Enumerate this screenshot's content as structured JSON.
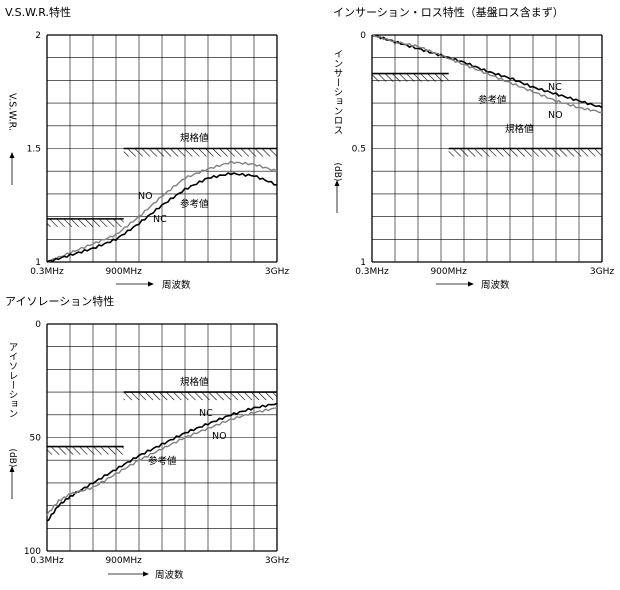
{
  "chart_data": [
    {
      "type": "line",
      "title": "V.S.W.R.特性",
      "ylabel": "V.S.W.R.",
      "xlabel": "周波数",
      "x_ticks": [
        "0.3MHz",
        "900MHz",
        "3GHz"
      ],
      "y_ticks": [
        "1",
        "1.5",
        "2"
      ],
      "ylim": [
        1,
        2
      ],
      "x_range": [
        "0.3MHz",
        "3GHz"
      ],
      "grid": true,
      "spec_label": "規格値",
      "ref_label": "参考値",
      "spec_limits": [
        {
          "x_from": "0.3MHz",
          "x_to": "900MHz",
          "y": 1.19
        },
        {
          "x_from": "900MHz",
          "x_to": "3GHz",
          "y": 1.5
        }
      ],
      "series": [
        {
          "name": "NO",
          "color": "#808080",
          "x": [
            0.0,
            0.1,
            0.2,
            0.3,
            0.4,
            0.5,
            0.6,
            0.7,
            0.8,
            0.9,
            1.0
          ],
          "values": [
            1.0,
            1.04,
            1.08,
            1.12,
            1.2,
            1.29,
            1.37,
            1.41,
            1.44,
            1.43,
            1.4
          ]
        },
        {
          "name": "NC",
          "color": "#000000",
          "x": [
            0.0,
            0.1,
            0.2,
            0.3,
            0.4,
            0.5,
            0.6,
            0.7,
            0.8,
            0.9,
            1.0
          ],
          "values": [
            1.0,
            1.03,
            1.06,
            1.1,
            1.17,
            1.25,
            1.32,
            1.37,
            1.39,
            1.38,
            1.34
          ]
        }
      ]
    },
    {
      "type": "line",
      "title": "インサーション・ロス特性（基盤ロス含まず）",
      "ylabel": "インサーションロス",
      "yunit": "(dB)",
      "xlabel": "周波数",
      "x_ticks": [
        "0.3MHz",
        "900MHz",
        "3GHz"
      ],
      "y_ticks": [
        "0",
        "0.5",
        "1"
      ],
      "ylim": [
        1,
        0
      ],
      "x_range": [
        "0.3MHz",
        "3GHz"
      ],
      "grid": true,
      "spec_label": "規格値",
      "ref_label": "参考値",
      "spec_limits": [
        {
          "x_from": "0.3MHz",
          "x_to": "900MHz",
          "y": 0.17
        },
        {
          "x_from": "900MHz",
          "x_to": "3GHz",
          "y": 0.5
        }
      ],
      "series": [
        {
          "name": "NC",
          "color": "#000000",
          "x": [
            0.0,
            0.1,
            0.2,
            0.3,
            0.4,
            0.5,
            0.6,
            0.7,
            0.8,
            0.9,
            1.0
          ],
          "values": [
            0.0,
            0.03,
            0.06,
            0.09,
            0.12,
            0.16,
            0.19,
            0.23,
            0.26,
            0.29,
            0.32
          ]
        },
        {
          "name": "NO",
          "color": "#808080",
          "x": [
            0.0,
            0.1,
            0.2,
            0.3,
            0.4,
            0.5,
            0.6,
            0.7,
            0.8,
            0.9,
            1.0
          ],
          "values": [
            0.0,
            0.03,
            0.05,
            0.09,
            0.13,
            0.17,
            0.21,
            0.25,
            0.29,
            0.32,
            0.34
          ]
        }
      ]
    },
    {
      "type": "line",
      "title": "アイソレーション特性",
      "ylabel": "アイソレーション",
      "yunit": "(dB)",
      "xlabel": "周波数",
      "x_ticks": [
        "0.3MHz",
        "900MHz",
        "3GHz"
      ],
      "y_ticks": [
        "0",
        "50",
        "100"
      ],
      "ylim": [
        100,
        0
      ],
      "x_range": [
        "0.3MHz",
        "3GHz"
      ],
      "grid": true,
      "spec_label": "規格値",
      "ref_label": "参考値",
      "spec_limits": [
        {
          "x_from": "0.3MHz",
          "x_to": "900MHz",
          "y": 54
        },
        {
          "x_from": "900MHz",
          "x_to": "3GHz",
          "y": 30
        }
      ],
      "series": [
        {
          "name": "NC",
          "color": "#000000",
          "x": [
            0.0,
            0.05,
            0.1,
            0.2,
            0.3,
            0.4,
            0.5,
            0.6,
            0.7,
            0.8,
            0.9,
            1.0
          ],
          "values": [
            87,
            80,
            76,
            70,
            64,
            58,
            53,
            48,
            44,
            40,
            37,
            35
          ]
        },
        {
          "name": "NO",
          "color": "#808080",
          "x": [
            0.0,
            0.05,
            0.1,
            0.2,
            0.3,
            0.4,
            0.5,
            0.6,
            0.7,
            0.8,
            0.9,
            1.0
          ],
          "values": [
            84,
            78,
            75,
            72,
            66,
            60,
            55,
            50,
            46,
            42,
            39,
            37
          ]
        }
      ]
    }
  ]
}
